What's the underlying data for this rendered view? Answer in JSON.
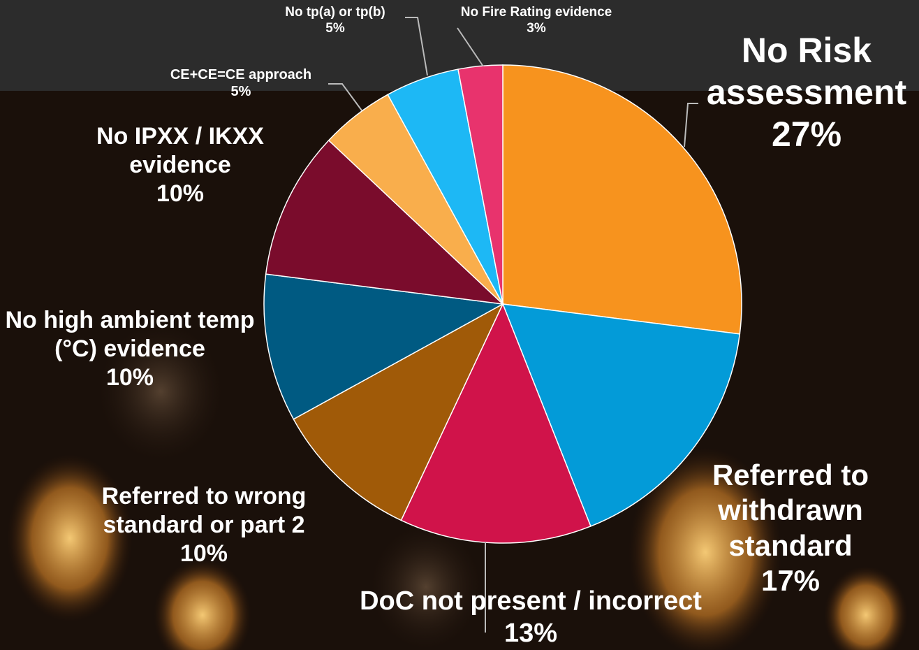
{
  "chart_data": {
    "type": "pie",
    "categories": [
      "No Risk assessment",
      "Referred to withdrawn standard",
      "DoC not present / incorrect",
      "Referred to wrong standard or part 2",
      "No high ambient temp (°C) evidence",
      "No IPXX / IKXX evidence",
      "CE+CE=CE approach",
      "No tp(a) or tp(b)",
      "No Fire Rating evidence"
    ],
    "values": [
      27,
      17,
      13,
      10,
      10,
      10,
      5,
      5,
      3
    ],
    "value_labels": [
      "27%",
      "17%",
      "13%",
      "10%",
      "10%",
      "10%",
      "5%",
      "5%",
      "3%"
    ],
    "colors": [
      "#f7931e",
      "#039bd8",
      "#d0134a",
      "#a05a08",
      "#005a82",
      "#7a0c2c",
      "#f9ae4c",
      "#1db8f5",
      "#e8336d"
    ]
  }
}
